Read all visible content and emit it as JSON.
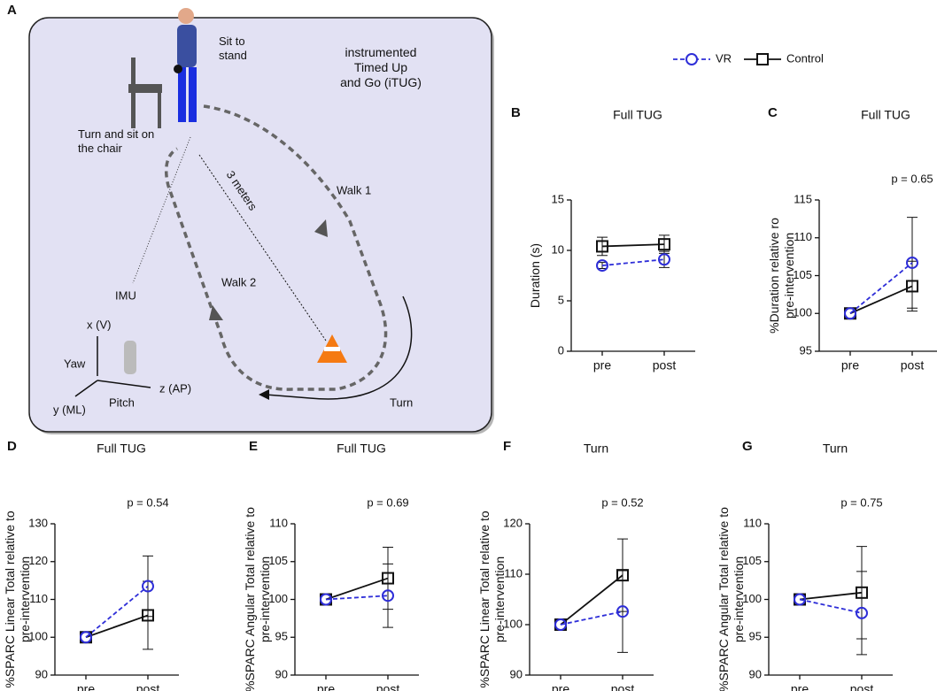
{
  "diagram": {
    "letter": "A",
    "sit_to_stand": [
      "Sit to",
      "stand"
    ],
    "itug": [
      "instrumented",
      "Timed Up",
      "and Go (iTUG)"
    ],
    "turn_sit": [
      "Turn and sit on",
      "the chair"
    ],
    "meters": "3 meters",
    "walk1": "Walk 1",
    "walk2": "Walk 2",
    "imu": "IMU",
    "xv": "x (V)",
    "yaw": "Yaw",
    "zap": "z (AP)",
    "yml": "y (ML)",
    "pitch": "Pitch",
    "turn": "Turn"
  },
  "chart_data": [
    {
      "type": "line",
      "letter": "B",
      "title": "Full TUG",
      "ylabel": [
        "Duration (s)"
      ],
      "categories": [
        "pre",
        "post"
      ],
      "ylim": [
        0,
        15
      ],
      "yticks": [
        0,
        5,
        10,
        15
      ],
      "series": [
        {
          "name": "VR",
          "color": "#2e2ed8",
          "values": [
            8.5,
            9.1
          ],
          "errors": [
            0.3,
            0.8
          ]
        },
        {
          "name": "Control",
          "color": "#111111",
          "values": [
            10.4,
            10.6
          ],
          "errors": [
            0.9,
            0.9
          ]
        }
      ]
    },
    {
      "type": "line",
      "letter": "C",
      "title": "Full TUG",
      "ylabel": [
        "%Duration relative ro",
        "pre-intervention"
      ],
      "annotation": "p = 0.65",
      "categories": [
        "pre",
        "post"
      ],
      "ylim": [
        95,
        115
      ],
      "yticks": [
        95,
        100,
        105,
        110,
        115
      ],
      "series": [
        {
          "name": "VR",
          "color": "#2e2ed8",
          "values": [
            100,
            106.7
          ],
          "errors": [
            0,
            6
          ]
        },
        {
          "name": "Control",
          "color": "#111111",
          "values": [
            100,
            103.6
          ],
          "errors": [
            0,
            3.3
          ]
        }
      ]
    },
    {
      "type": "line",
      "letter": "D",
      "title": "Full TUG",
      "ylabel": [
        "%SPARC Linear Total relative to",
        "pre-intervention"
      ],
      "annotation": "p = 0.54",
      "categories": [
        "pre",
        "post"
      ],
      "ylim": [
        90,
        130
      ],
      "yticks": [
        90,
        100,
        110,
        120,
        130
      ],
      "series": [
        {
          "name": "VR",
          "color": "#2e2ed8",
          "values": [
            100,
            113.5
          ],
          "errors": [
            0,
            8
          ]
        },
        {
          "name": "Control",
          "color": "#111111",
          "values": [
            100,
            105.8
          ],
          "errors": [
            0,
            9
          ]
        }
      ]
    },
    {
      "type": "line",
      "letter": "E",
      "title": "Full TUG",
      "ylabel": [
        "%SPARC Angular Total relative to",
        "pre-intervention"
      ],
      "annotation": "p = 0.69",
      "categories": [
        "pre",
        "post"
      ],
      "ylim": [
        90,
        110
      ],
      "yticks": [
        90,
        95,
        100,
        105,
        110
      ],
      "series": [
        {
          "name": "VR",
          "color": "#2e2ed8",
          "values": [
            100,
            100.5
          ],
          "errors": [
            0,
            4.2
          ]
        },
        {
          "name": "Control",
          "color": "#111111",
          "values": [
            100,
            102.8
          ],
          "errors": [
            0,
            4.1
          ]
        }
      ]
    },
    {
      "type": "line",
      "letter": "F",
      "title": "Turn",
      "ylabel": [
        "%SPARC Linear Total relative to",
        "pre-intervention"
      ],
      "annotation": "p = 0.52",
      "categories": [
        "pre",
        "post"
      ],
      "ylim": [
        90,
        120
      ],
      "yticks": [
        90,
        100,
        110,
        120
      ],
      "series": [
        {
          "name": "VR",
          "color": "#2e2ed8",
          "values": [
            100,
            102.6
          ],
          "errors": [
            0,
            8.1
          ]
        },
        {
          "name": "Control",
          "color": "#111111",
          "values": [
            100,
            109.8
          ],
          "errors": [
            0,
            7.2
          ]
        }
      ]
    },
    {
      "type": "line",
      "letter": "G",
      "title": "Turn",
      "ylabel": [
        "%SPARC Angular Total relative to",
        "pre-intervention"
      ],
      "annotation": "p = 0.75",
      "categories": [
        "pre",
        "post"
      ],
      "ylim": [
        90,
        110
      ],
      "yticks": [
        90,
        95,
        100,
        105,
        110
      ],
      "series": [
        {
          "name": "VR",
          "color": "#2e2ed8",
          "values": [
            100,
            98.2
          ],
          "errors": [
            0,
            5.5
          ]
        },
        {
          "name": "Control",
          "color": "#111111",
          "values": [
            100,
            100.9
          ],
          "errors": [
            0,
            6.1
          ]
        }
      ]
    }
  ]
}
